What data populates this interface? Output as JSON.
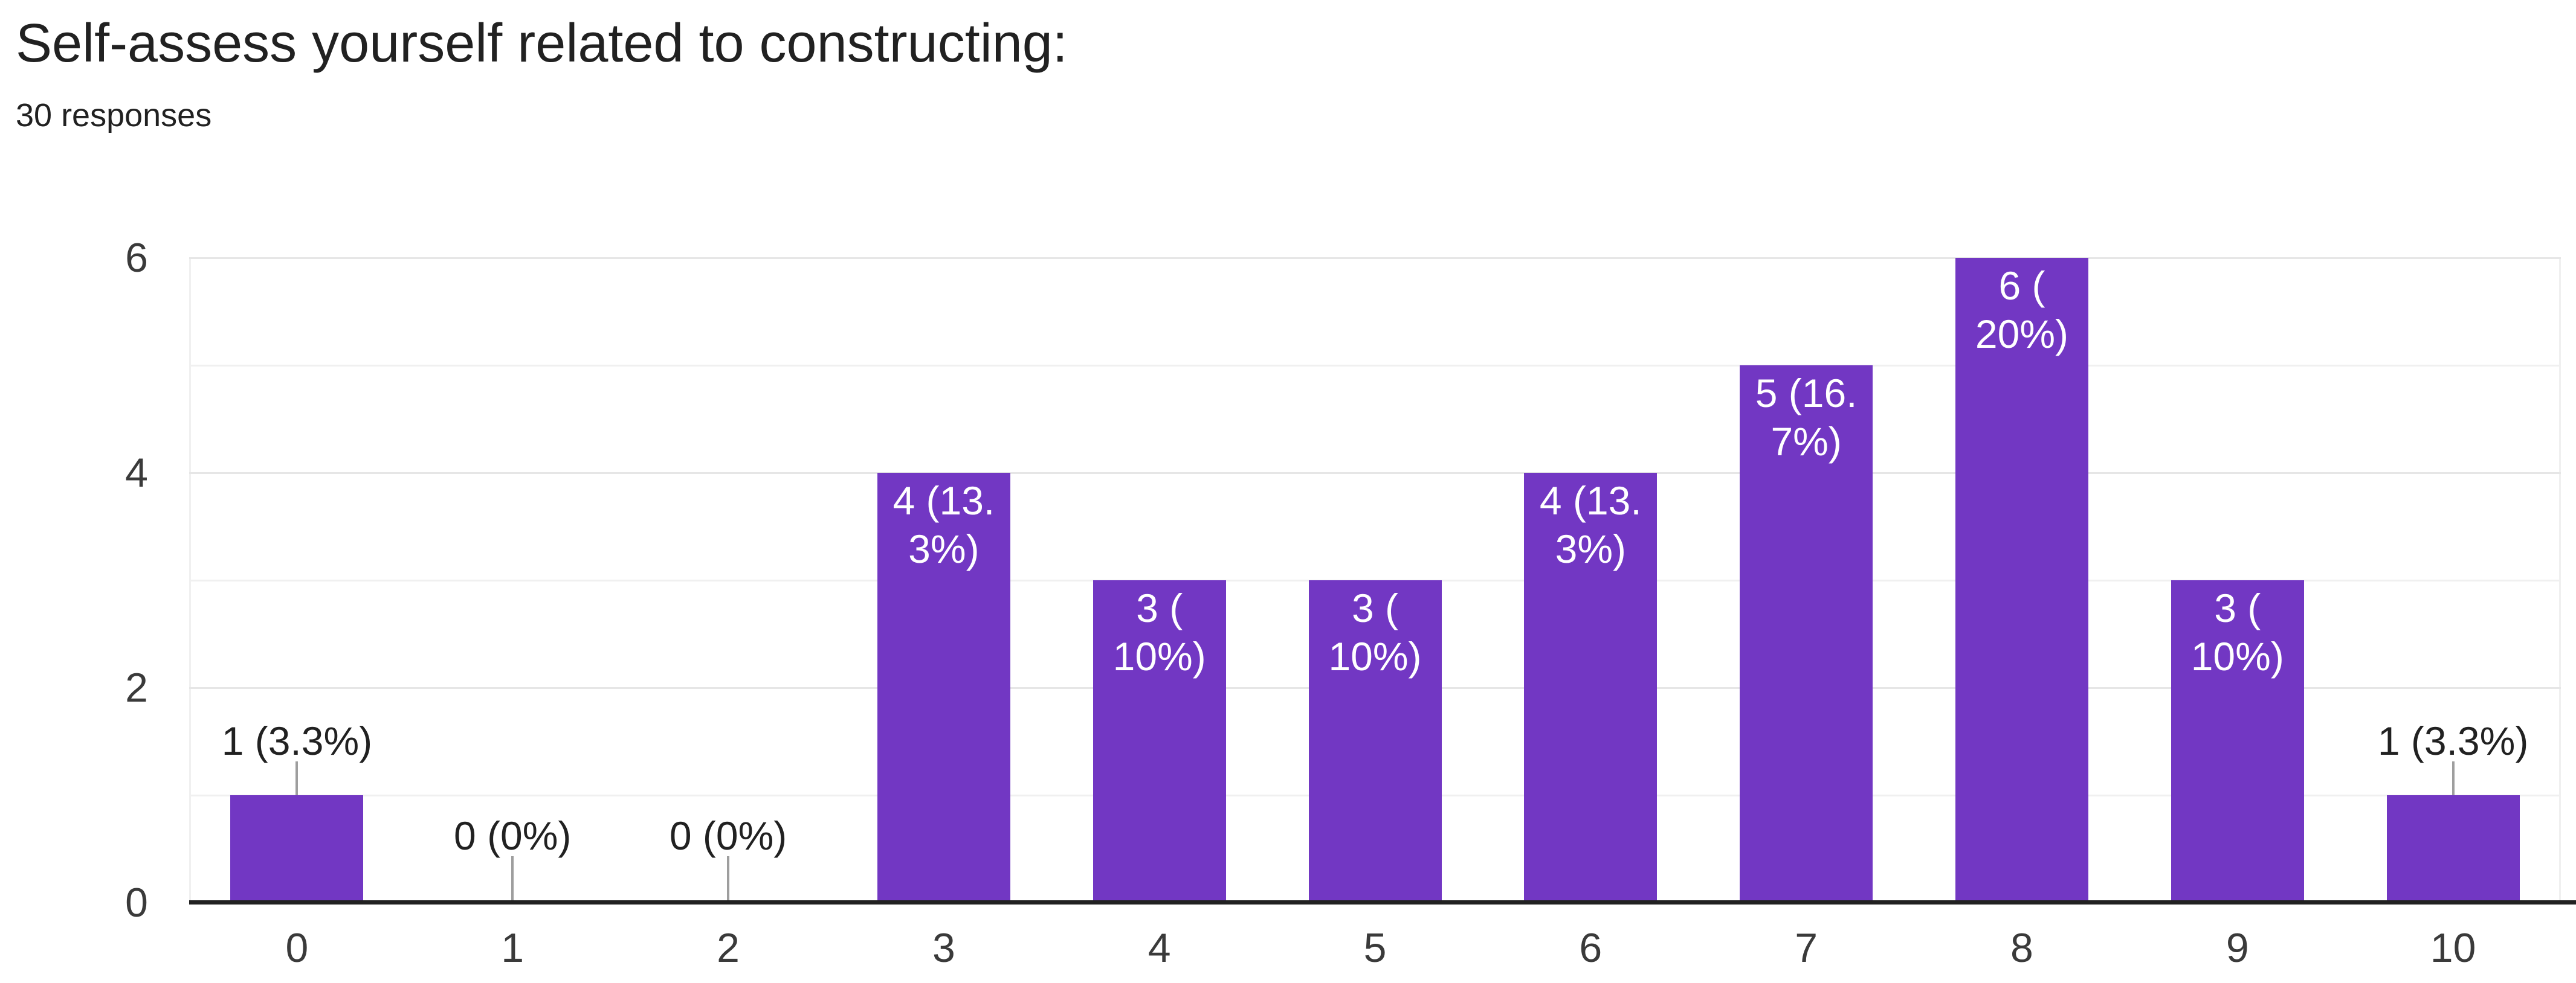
{
  "header": {
    "title": "Self-assess yourself related to constructing:",
    "subtitle": "30 responses"
  },
  "chart_data": {
    "type": "bar",
    "title": "Self-assess yourself related to constructing:",
    "subtitle": "30 responses",
    "total_responses": 30,
    "categories": [
      "0",
      "1",
      "2",
      "3",
      "4",
      "5",
      "6",
      "7",
      "8",
      "9",
      "10"
    ],
    "values": [
      1,
      0,
      0,
      4,
      3,
      3,
      4,
      5,
      6,
      3,
      1
    ],
    "percentages": [
      3.3,
      0,
      0,
      13.3,
      10,
      10,
      13.3,
      16.7,
      20,
      10,
      3.3
    ],
    "bar_labels": [
      {
        "lines": [
          "1 (3.3%)"
        ],
        "placement": "outside"
      },
      {
        "lines": [
          "0 (0%)"
        ],
        "placement": "outside"
      },
      {
        "lines": [
          "0 (0%)"
        ],
        "placement": "outside"
      },
      {
        "lines": [
          "4 (13.",
          "3%)"
        ],
        "placement": "inside"
      },
      {
        "lines": [
          "3 (",
          "10%)"
        ],
        "placement": "inside"
      },
      {
        "lines": [
          "3 (",
          "10%)"
        ],
        "placement": "inside"
      },
      {
        "lines": [
          "4 (13.",
          "3%)"
        ],
        "placement": "inside"
      },
      {
        "lines": [
          "5 (16.",
          "7%)"
        ],
        "placement": "inside"
      },
      {
        "lines": [
          "6 (",
          "20%)"
        ],
        "placement": "inside"
      },
      {
        "lines": [
          "3 (",
          "10%)"
        ],
        "placement": "inside"
      },
      {
        "lines": [
          "1 (3.3%)"
        ],
        "placement": "outside"
      }
    ],
    "xlabel": "",
    "ylabel": "",
    "ylim": [
      0,
      6
    ],
    "yticks_labeled": [
      0,
      2,
      4,
      6
    ],
    "yticks_minor": [
      1,
      3,
      5
    ],
    "grid": "horizontal",
    "legend": "none",
    "colors": {
      "bar": "#7237c3",
      "label_inside": "#ffffff",
      "label_outside": "#212121",
      "axis_text": "#3a3a3a",
      "gridline_major": "#e6e6e6",
      "gridline_minor": "#f0f0f0",
      "baseline": "#212121",
      "stem": "#9e9e9e",
      "background": "#ffffff"
    }
  }
}
